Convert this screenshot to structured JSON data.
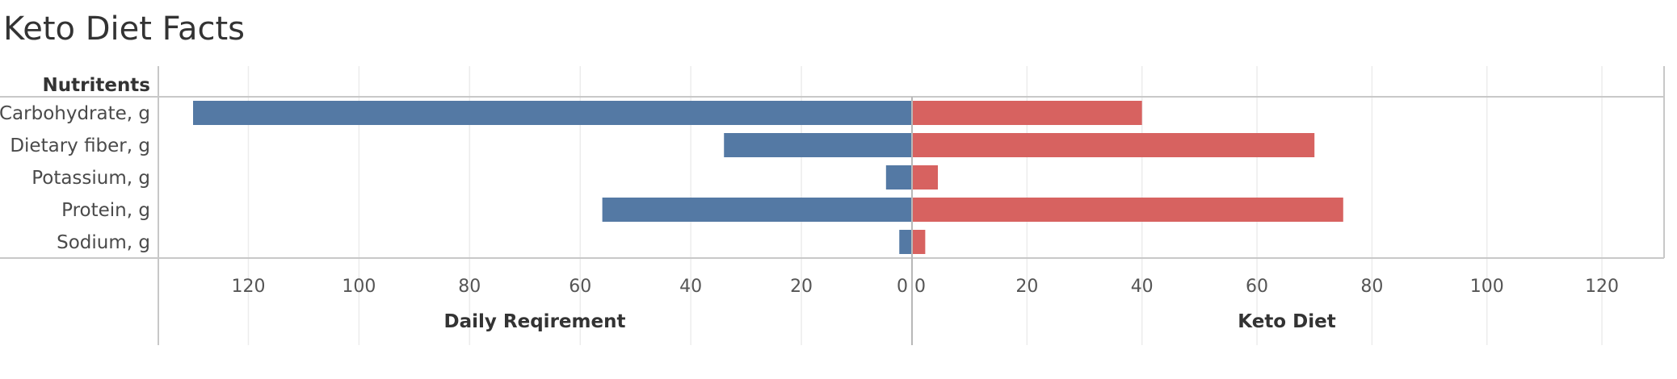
{
  "chart_data": {
    "type": "bar",
    "title": "Keto Diet Facts",
    "row_header": "Nutritents",
    "categories": [
      "Carbohydrate, g",
      "Dietary fiber, g",
      "Potassium, g",
      "Protein, g",
      "Sodium, g"
    ],
    "series": [
      {
        "name": "Daily Reqirement",
        "values": [
          130,
          34,
          4.7,
          56,
          2.3
        ],
        "color": "#5479a4",
        "axis_label": "Daily Reqirement",
        "direction": "left"
      },
      {
        "name": "Keto Diet",
        "values": [
          40,
          70,
          4.5,
          75,
          2.3
        ],
        "color": "#d76260",
        "axis_label": "Keto Diet",
        "direction": "right"
      }
    ],
    "left_axis": {
      "ticks": [
        120,
        100,
        80,
        60,
        40,
        20,
        0
      ],
      "range": [
        0,
        130
      ]
    },
    "right_axis": {
      "ticks": [
        0,
        20,
        40,
        60,
        80,
        100,
        120
      ],
      "range": [
        0,
        128
      ]
    },
    "grid": true
  }
}
